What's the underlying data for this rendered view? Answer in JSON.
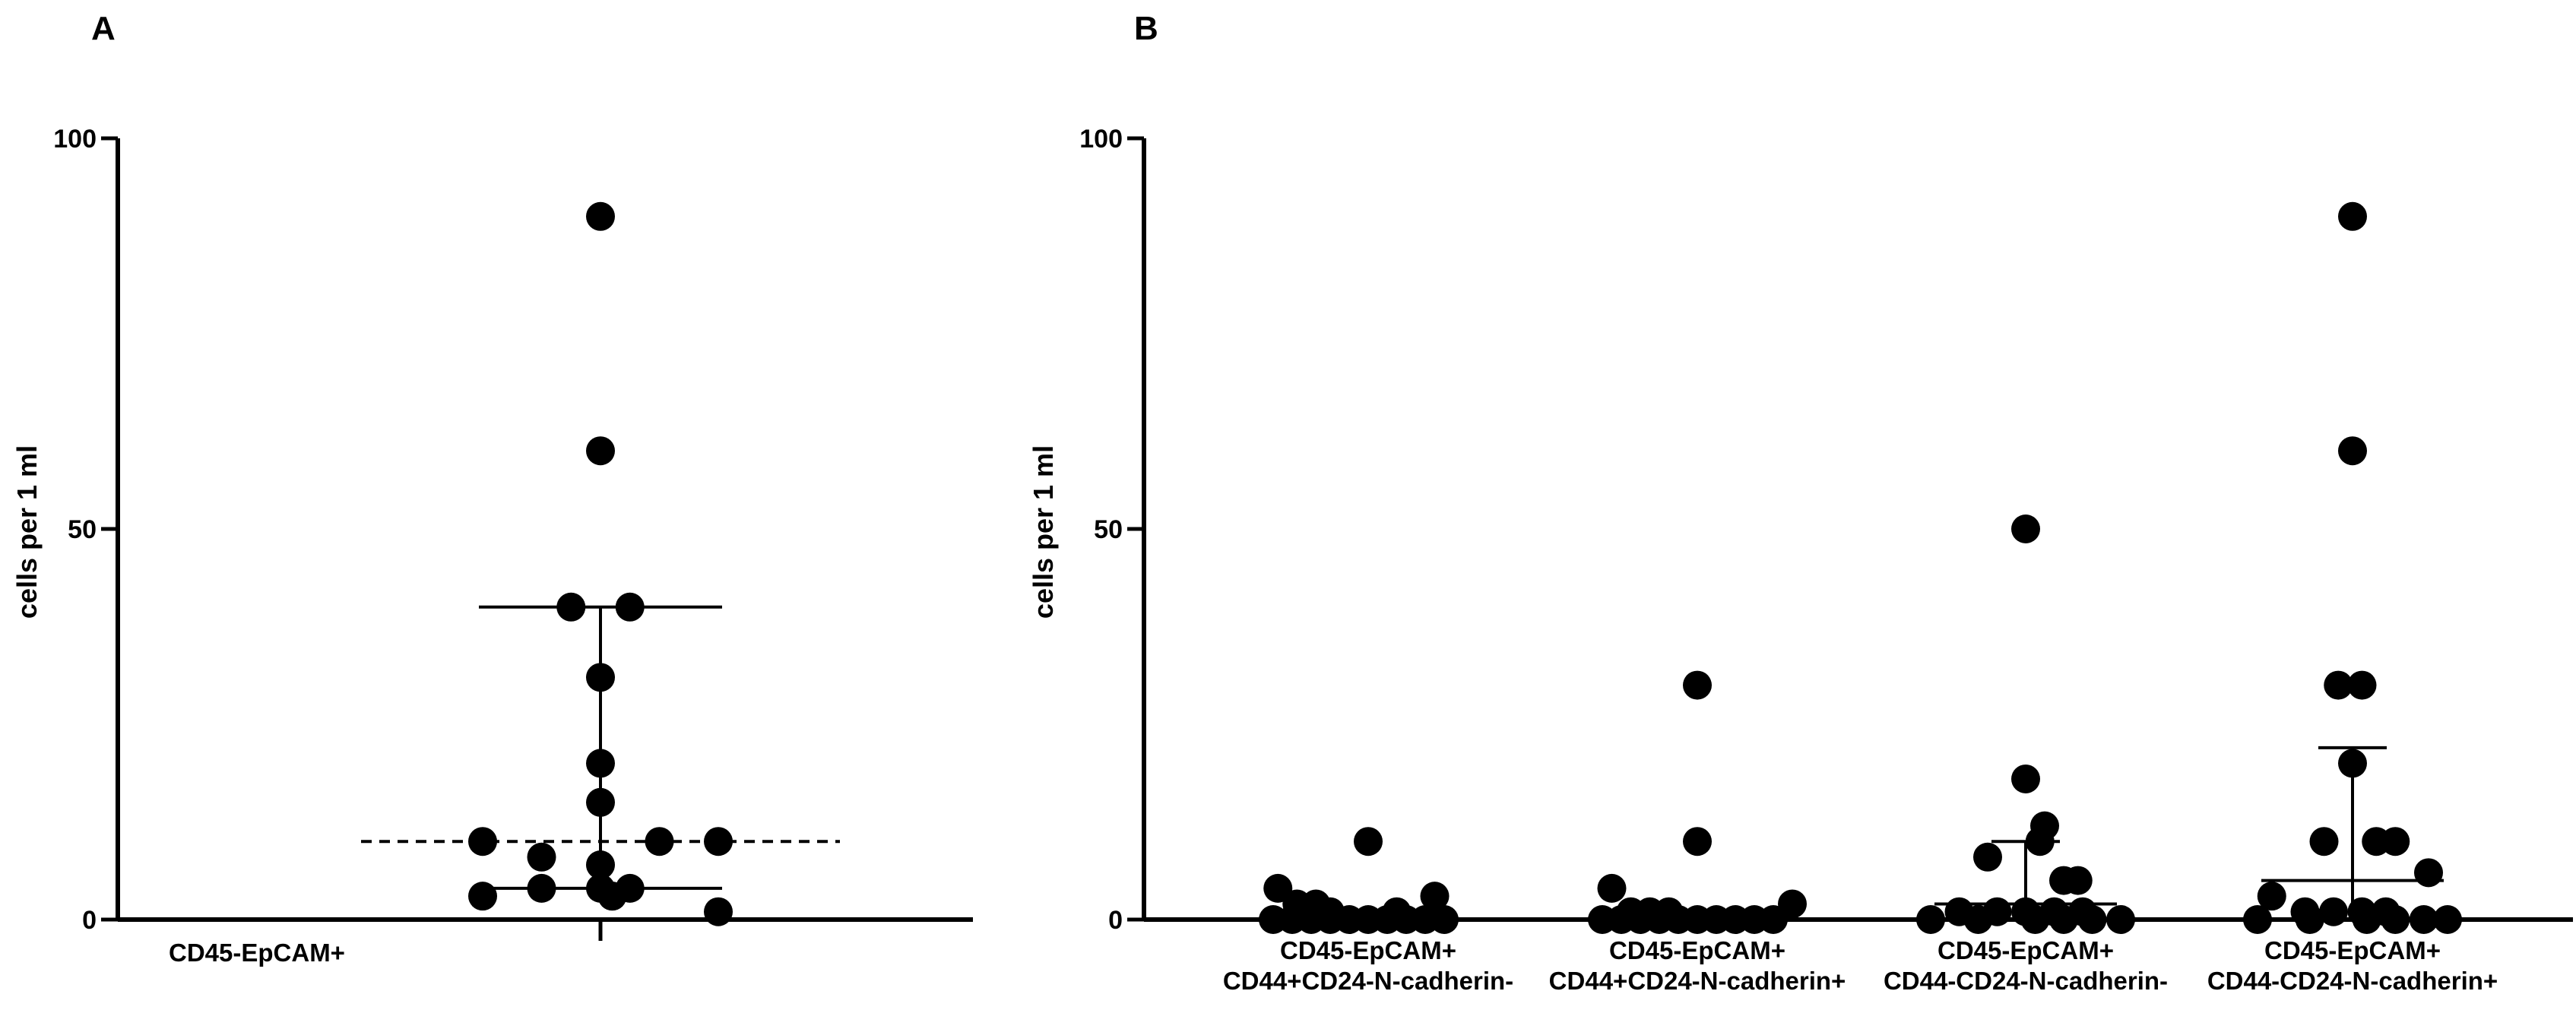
{
  "chart_data": [
    {
      "panel": "A",
      "type": "scatter",
      "ylabel": "cells per 1 ml",
      "ylim": [
        0,
        100
      ],
      "yticks": [
        0,
        50,
        100
      ],
      "categories": [
        "CD45-EpCAM+"
      ],
      "groups": [
        {
          "category": "CD45-EpCAM+",
          "points": [
            {
              "offset": 0,
              "y": 90
            },
            {
              "offset": 0,
              "y": 60
            },
            {
              "offset": -0.25,
              "y": 40
            },
            {
              "offset": 0.25,
              "y": 40
            },
            {
              "offset": 0,
              "y": 31
            },
            {
              "offset": 0,
              "y": 20
            },
            {
              "offset": 0,
              "y": 15
            },
            {
              "offset": -1.0,
              "y": 10
            },
            {
              "offset": 0.5,
              "y": 10
            },
            {
              "offset": 1.0,
              "y": 10
            },
            {
              "offset": -0.5,
              "y": 8
            },
            {
              "offset": 0,
              "y": 7
            },
            {
              "offset": -0.5,
              "y": 4
            },
            {
              "offset": 0.1,
              "y": 3
            },
            {
              "offset": 0.1,
              "y": 3
            },
            {
              "offset": 1.0,
              "y": 1
            },
            {
              "offset": 0,
              "y": 4
            },
            {
              "offset": 0.25,
              "y": 4
            },
            {
              "offset": -1.0,
              "y": 3
            }
          ],
          "upper": 40,
          "lower": 4,
          "median": 10
        }
      ]
    },
    {
      "panel": "B",
      "type": "scatter",
      "ylabel": "cells per 1 ml",
      "ylim": [
        0,
        100
      ],
      "yticks": [
        0,
        50,
        100
      ],
      "categories": [
        [
          "CD45-EpCAM+",
          "CD44+CD24-N-cadherin-"
        ],
        [
          "CD45-EpCAM+",
          "CD44+CD24-N-cadherin+"
        ],
        [
          "CD45-EpCAM+",
          "CD44-CD24-N-cadherin-"
        ],
        [
          "CD45-EpCAM+",
          "CD44-CD24-N-cadherin+"
        ]
      ],
      "groups": [
        {
          "points": [
            {
              "offset": 0,
              "y": 10
            },
            {
              "offset": -0.95,
              "y": 4
            },
            {
              "offset": 0.7,
              "y": 3
            },
            {
              "offset": -0.75,
              "y": 2
            },
            {
              "offset": -0.55,
              "y": 2
            },
            {
              "offset": -0.4,
              "y": 1
            },
            {
              "offset": 0.3,
              "y": 1
            },
            {
              "offset": -1.0,
              "y": 0
            },
            {
              "offset": -0.8,
              "y": 0
            },
            {
              "offset": -0.6,
              "y": 0
            },
            {
              "offset": -0.4,
              "y": 0
            },
            {
              "offset": -0.2,
              "y": 0
            },
            {
              "offset": 0.0,
              "y": 0
            },
            {
              "offset": 0.2,
              "y": 0
            },
            {
              "offset": 0.4,
              "y": 0
            },
            {
              "offset": 0.6,
              "y": 0
            },
            {
              "offset": 0.8,
              "y": 0
            }
          ],
          "upper": 1,
          "lower": 0,
          "median": 0
        },
        {
          "points": [
            {
              "offset": 0,
              "y": 30
            },
            {
              "offset": 0,
              "y": 10
            },
            {
              "offset": -0.9,
              "y": 4
            },
            {
              "offset": 1.0,
              "y": 2
            },
            {
              "offset": -0.7,
              "y": 1
            },
            {
              "offset": -0.5,
              "y": 1
            },
            {
              "offset": -0.3,
              "y": 1
            },
            {
              "offset": -1.0,
              "y": 0
            },
            {
              "offset": -0.8,
              "y": 0
            },
            {
              "offset": -0.6,
              "y": 0
            },
            {
              "offset": -0.4,
              "y": 0
            },
            {
              "offset": -0.2,
              "y": 0
            },
            {
              "offset": 0.0,
              "y": 0
            },
            {
              "offset": 0.2,
              "y": 0
            },
            {
              "offset": 0.4,
              "y": 0
            },
            {
              "offset": 0.6,
              "y": 0
            },
            {
              "offset": 0.8,
              "y": 0
            }
          ],
          "upper": 1,
          "lower": 0,
          "median": 0
        },
        {
          "points": [
            {
              "offset": 0,
              "y": 50
            },
            {
              "offset": 0,
              "y": 18
            },
            {
              "offset": 0.2,
              "y": 12
            },
            {
              "offset": 0.15,
              "y": 10
            },
            {
              "offset": -0.4,
              "y": 8
            },
            {
              "offset": 0.55,
              "y": 5
            },
            {
              "offset": 0.4,
              "y": 5
            },
            {
              "offset": -0.7,
              "y": 1
            },
            {
              "offset": -0.3,
              "y": 1
            },
            {
              "offset": 0.0,
              "y": 1
            },
            {
              "offset": 0.3,
              "y": 1
            },
            {
              "offset": 0.6,
              "y": 1
            },
            {
              "offset": -1.0,
              "y": 0
            },
            {
              "offset": -0.5,
              "y": 0
            },
            {
              "offset": 0.1,
              "y": 0
            },
            {
              "offset": 0.4,
              "y": 0
            },
            {
              "offset": 0.7,
              "y": 0
            },
            {
              "offset": 1.0,
              "y": 0
            }
          ],
          "upper": 10,
          "lower": 0,
          "median": 2
        },
        {
          "points": [
            {
              "offset": 0,
              "y": 90
            },
            {
              "offset": 0,
              "y": 60
            },
            {
              "offset": -0.15,
              "y": 30
            },
            {
              "offset": 0.1,
              "y": 30
            },
            {
              "offset": 0,
              "y": 20
            },
            {
              "offset": -0.3,
              "y": 10
            },
            {
              "offset": 0.25,
              "y": 10
            },
            {
              "offset": 0.45,
              "y": 10
            },
            {
              "offset": 0.8,
              "y": 6
            },
            {
              "offset": -0.85,
              "y": 3
            },
            {
              "offset": -0.5,
              "y": 1
            },
            {
              "offset": -0.2,
              "y": 1
            },
            {
              "offset": 0.1,
              "y": 1
            },
            {
              "offset": 0.35,
              "y": 1
            },
            {
              "offset": -1.0,
              "y": 0
            },
            {
              "offset": -0.45,
              "y": 0
            },
            {
              "offset": 0.15,
              "y": 0
            },
            {
              "offset": 0.45,
              "y": 0
            },
            {
              "offset": 0.75,
              "y": 0
            },
            {
              "offset": 1.0,
              "y": 0
            }
          ],
          "upper": 22,
          "lower": 0,
          "median": 5
        }
      ]
    }
  ]
}
